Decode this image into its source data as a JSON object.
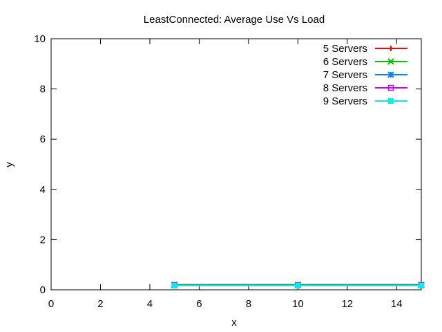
{
  "chart_data": {
    "type": "line",
    "title": "LeastConnected: Average Use Vs Load",
    "xlabel": "x",
    "ylabel": "y",
    "xlim": [
      0,
      15
    ],
    "ylim": [
      0,
      10
    ],
    "xticks": [
      0,
      2,
      4,
      6,
      8,
      10,
      12,
      14
    ],
    "yticks": [
      0,
      2,
      4,
      6,
      8,
      10
    ],
    "grid": false,
    "legend_position": "top-right",
    "series": [
      {
        "name": "5 Servers",
        "color": "#ff0000",
        "marker": "plus",
        "x": [
          5,
          10,
          15
        ],
        "y": [
          0.2,
          0.2,
          0.2
        ]
      },
      {
        "name": "6 Servers",
        "color": "#00c000",
        "marker": "cross",
        "x": [
          5,
          10,
          15
        ],
        "y": [
          0.2,
          0.2,
          0.2
        ]
      },
      {
        "name": "7 Servers",
        "color": "#0080ff",
        "marker": "star",
        "x": [
          5,
          10,
          15
        ],
        "y": [
          0.18,
          0.18,
          0.18
        ]
      },
      {
        "name": "8 Servers",
        "color": "#c000ff",
        "marker": "open-square",
        "x": [
          5,
          10,
          15
        ],
        "y": [
          0.18,
          0.18,
          0.18
        ]
      },
      {
        "name": "9 Servers",
        "color": "#00eeee",
        "marker": "filled-square",
        "x": [
          5,
          10,
          15
        ],
        "y": [
          0.17,
          0.17,
          0.17
        ]
      }
    ]
  }
}
